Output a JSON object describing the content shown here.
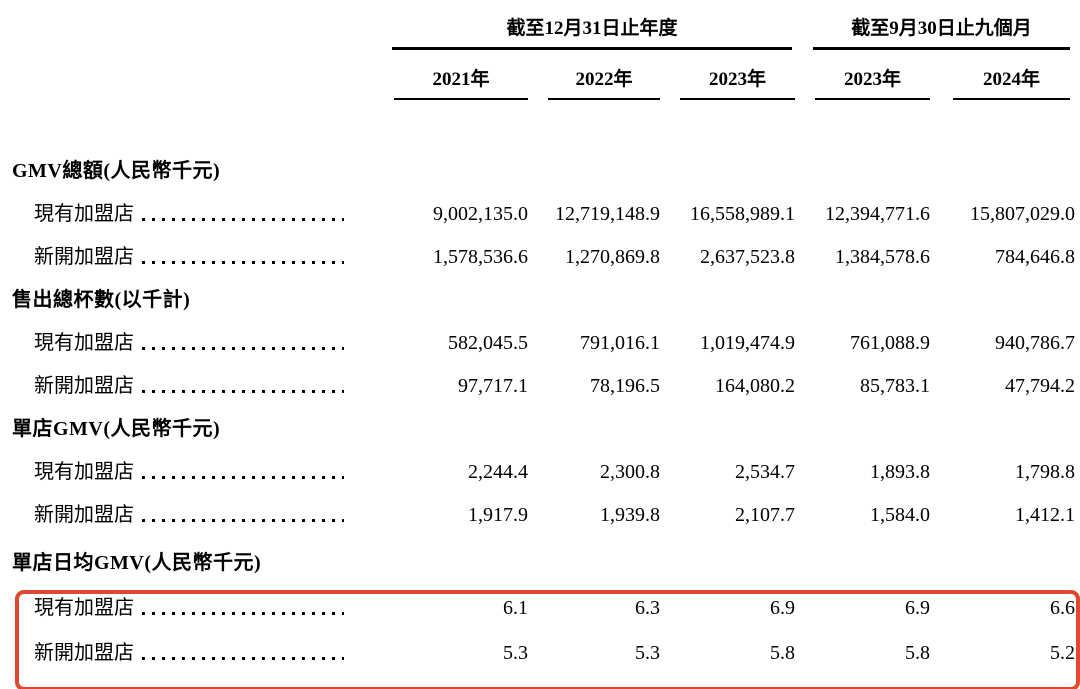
{
  "highlight": {
    "box_color": "#e0492f",
    "purpose": "highlights the two 單店日均GMV rows"
  },
  "table": {
    "column_groups": [
      {
        "label": "截至12月31日止年度",
        "span": 3
      },
      {
        "label": "截至9月30日止九個月",
        "span": 2
      }
    ],
    "year_columns": [
      "2021年",
      "2022年",
      "2023年",
      "2023年",
      "2024年"
    ],
    "sections": [
      {
        "header": "GMV總額(人民幣千元)",
        "rows": [
          {
            "label": "現有加盟店",
            "values": [
              "9,002,135.0",
              "12,719,148.9",
              "16,558,989.1",
              "12,394,771.6",
              "15,807,029.0"
            ]
          },
          {
            "label": "新開加盟店",
            "values": [
              "1,578,536.6",
              "1,270,869.8",
              "2,637,523.8",
              "1,384,578.6",
              "784,646.8"
            ]
          }
        ]
      },
      {
        "header": "售出總杯數(以千計)",
        "rows": [
          {
            "label": "現有加盟店",
            "values": [
              "582,045.5",
              "791,016.1",
              "1,019,474.9",
              "761,088.9",
              "940,786.7"
            ]
          },
          {
            "label": "新開加盟店",
            "values": [
              "97,717.1",
              "78,196.5",
              "164,080.2",
              "85,783.1",
              "47,794.2"
            ]
          }
        ]
      },
      {
        "header": "單店GMV(人民幣千元)",
        "rows": [
          {
            "label": "現有加盟店",
            "values": [
              "2,244.4",
              "2,300.8",
              "2,534.7",
              "1,893.8",
              "1,798.8"
            ]
          },
          {
            "label": "新開加盟店",
            "values": [
              "1,917.9",
              "1,939.8",
              "2,107.7",
              "1,584.0",
              "1,412.1"
            ]
          }
        ]
      },
      {
        "header": "單店日均GMV(人民幣千元)",
        "highlighted": true,
        "rows": [
          {
            "label": "現有加盟店",
            "values": [
              "6.1",
              "6.3",
              "6.9",
              "6.9",
              "6.6"
            ]
          },
          {
            "label": "新開加盟店",
            "values": [
              "5.3",
              "5.3",
              "5.8",
              "5.8",
              "5.2"
            ]
          }
        ]
      }
    ]
  }
}
